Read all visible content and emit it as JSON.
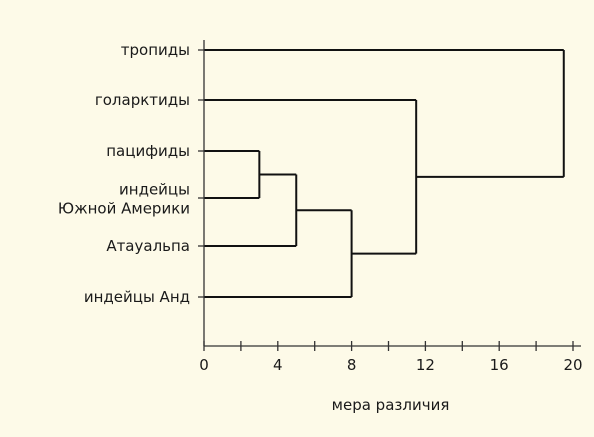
{
  "chart_data": {
    "type": "dendrogram",
    "title": "",
    "xlabel": "мера различия",
    "ylabel": "",
    "xlim": [
      0,
      20
    ],
    "xticks": [
      0,
      4,
      8,
      12,
      16,
      20
    ],
    "grid": false,
    "leaves": [
      {
        "id": "tropidy",
        "label_lines": [
          "тропиды"
        ]
      },
      {
        "id": "holarktidy",
        "label_lines": [
          "голарктиды"
        ]
      },
      {
        "id": "pacifidy",
        "label_lines": [
          "пацифиды"
        ]
      },
      {
        "id": "indians_sa",
        "label_lines": [
          "индейцы",
          "Южной Америки"
        ]
      },
      {
        "id": "atahualpa",
        "label_lines": [
          "Атауальпа"
        ]
      },
      {
        "id": "indians_andes",
        "label_lines": [
          "индейцы Анд"
        ]
      }
    ],
    "merges": [
      {
        "id": "m1",
        "children": [
          "pacifidy",
          "indians_sa"
        ],
        "distance": 3
      },
      {
        "id": "m2",
        "children": [
          "m1",
          "atahualpa"
        ],
        "distance": 5
      },
      {
        "id": "m3",
        "children": [
          "m2",
          "indians_andes"
        ],
        "distance": 8
      },
      {
        "id": "m4",
        "children": [
          "holarktidy",
          "m3"
        ],
        "distance": 11.5
      },
      {
        "id": "m5",
        "children": [
          "tropidy",
          "m4"
        ],
        "distance": 19.5
      }
    ]
  }
}
